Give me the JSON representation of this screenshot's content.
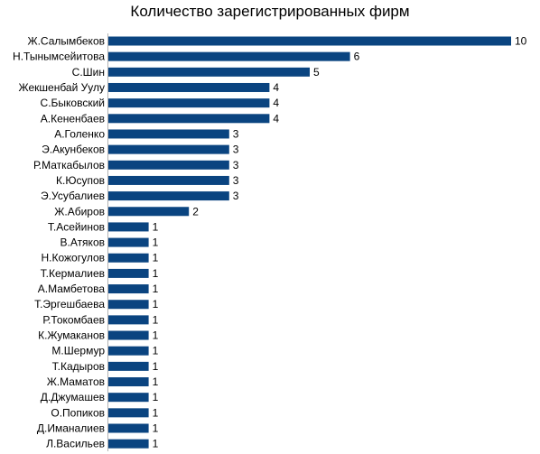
{
  "chart_data": {
    "type": "bar",
    "orientation": "horizontal",
    "title": "Количество зарегистрированных фирм",
    "xlabel": "",
    "ylabel": "",
    "xlim": [
      0,
      10
    ],
    "grid": false,
    "legend": "none",
    "bar_color": "#0a4480",
    "categories": [
      "Ж.Салымбеков",
      "Н.Тынымсейитова",
      "С.Шин",
      "Жекшенбай Уулу",
      "С.Быковский",
      "А.Кененбаев",
      "А.Голенко",
      "Э.Акунбеков",
      "Р.Маткабылов",
      "К.Юсупов",
      "Э.Усубалиев",
      "Ж.Абиров",
      "Т.Асейинов",
      "В.Атяков",
      "Н.Кожогулов",
      "Т.Кермалиев",
      "А.Мамбетова",
      "Т.Эргешбаева",
      "Р.Токомбаев",
      "К.Жумаканов",
      "М.Шермур",
      "Т.Кадыров",
      "Ж.Маматов",
      "Д.Джумашев",
      "О.Попиков",
      "Д.Иманалиев",
      "Л.Васильев"
    ],
    "values": [
      10,
      6,
      5,
      4,
      4,
      4,
      3,
      3,
      3,
      3,
      3,
      2,
      1,
      1,
      1,
      1,
      1,
      1,
      1,
      1,
      1,
      1,
      1,
      1,
      1,
      1,
      1
    ]
  }
}
